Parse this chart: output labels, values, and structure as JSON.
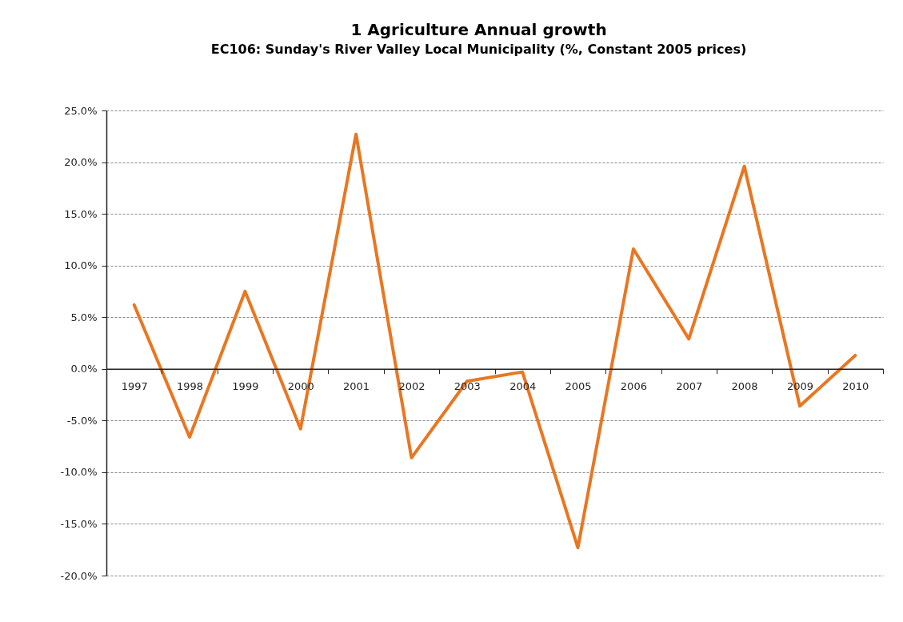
{
  "chart_data": {
    "type": "line",
    "title": "1 Agriculture Annual growth",
    "subtitle": "EC106: Sunday's River Valley Local Municipality (%, Constant 2005 prices)",
    "categories": [
      "1997",
      "1998",
      "1999",
      "2000",
      "2001",
      "2002",
      "2003",
      "2004",
      "2005",
      "2006",
      "2007",
      "2008",
      "2009",
      "2010"
    ],
    "series": [
      {
        "color": "#e87722",
        "values": [
          6.2,
          -6.6,
          7.5,
          -5.8,
          22.7,
          -8.6,
          -1.2,
          -0.3,
          -17.3,
          11.6,
          2.9,
          19.6,
          -3.6,
          1.3
        ]
      }
    ],
    "ylim": [
      -20,
      25
    ],
    "yticks": [
      {
        "value": -20,
        "label": "-20.0%"
      },
      {
        "value": -15,
        "label": "-15.0%"
      },
      {
        "value": -10,
        "label": "-10.0%"
      },
      {
        "value": -5,
        "label": "-5.0%"
      },
      {
        "value": 0,
        "label": "0.0%"
      },
      {
        "value": 5,
        "label": "5.0%"
      },
      {
        "value": 10,
        "label": "10.0%"
      },
      {
        "value": 15,
        "label": "15.0%"
      },
      {
        "value": 20,
        "label": "20.0%"
      },
      {
        "value": 25,
        "label": "25.0%"
      }
    ],
    "grid": "y",
    "line_style": "solid"
  }
}
